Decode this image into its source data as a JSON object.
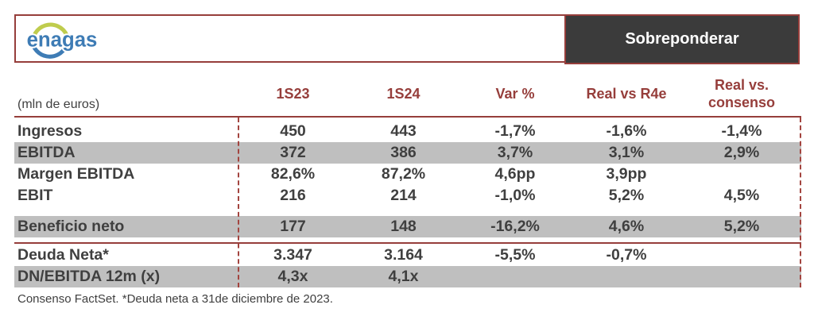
{
  "brand": {
    "logo_text": "enagas"
  },
  "rating": {
    "label": "Sobreponderar"
  },
  "table": {
    "unit_label": "(mln de euros)",
    "columns": [
      "1S23",
      "1S24",
      "Var %",
      "Real vs R4e",
      "Real vs. consenso"
    ],
    "rows": [
      {
        "label": "Ingresos",
        "values": [
          "450",
          "443",
          "-1,7%",
          "-1,6%",
          "-1,4%"
        ],
        "shaded": false
      },
      {
        "label": "EBITDA",
        "values": [
          "372",
          "386",
          "3,7%",
          "3,1%",
          "2,9%"
        ],
        "shaded": true
      },
      {
        "label": "Margen EBITDA",
        "values": [
          "82,6%",
          "87,2%",
          "4,6pp",
          "3,9pp",
          ""
        ],
        "shaded": false
      },
      {
        "label": "EBIT",
        "values": [
          "216",
          "214",
          "-1,0%",
          "5,2%",
          "4,5%"
        ],
        "shaded": false
      },
      {
        "label": "Beneficio neto",
        "values": [
          "177",
          "148",
          "-16,2%",
          "4,6%",
          "5,2%"
        ],
        "shaded": true,
        "spacer_before": true
      },
      {
        "label": "Deuda Neta*",
        "values": [
          "3.347",
          "3.164",
          "-5,5%",
          "-0,7%",
          ""
        ],
        "shaded": false,
        "divider_before": true
      },
      {
        "label": "DN/EBITDA 12m (x)",
        "values": [
          "4,3x",
          "4,1x",
          "",
          "",
          ""
        ],
        "shaded": true
      }
    ],
    "footnote": "Consenso FactSet. *Deuda neta a 31de diciembre de 2023."
  },
  "colors": {
    "accent_red": "#963E3B",
    "row_shade": "#BFBFBF",
    "rating_bg": "#3B3B3B",
    "text_dark": "#3F3F3F",
    "logo_blue": "#3E7CB5",
    "logo_green": "#BFCC4D"
  }
}
